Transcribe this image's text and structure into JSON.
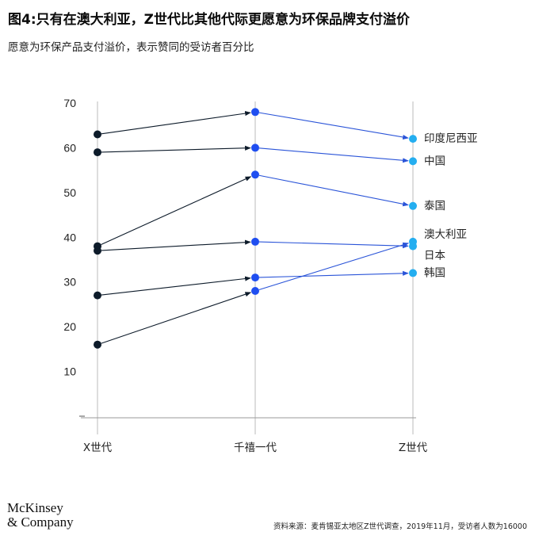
{
  "header": {
    "title": "图4:只有在澳大利亚，Z世代比其他代际更愿意为环保品牌支付溢价",
    "subtitle": "愿意为环保产品支付溢价，表示赞同的受访者百分比"
  },
  "footer": {
    "brand_line1": "McKinsey",
    "brand_line2": "& Company",
    "source": "资料来源：麦肯锡亚太地区Z世代调查，2019年11月，受访者人数为16000"
  },
  "colors": {
    "x_gen": "#0d1b2a",
    "millennial": "#1f4ef0",
    "z_gen": "#24aef0",
    "arrow_dark": "#0d1b2a",
    "arrow_blue": "#2a54d8",
    "grid": "#bbbbbb"
  },
  "chart_data": {
    "type": "line",
    "categories": [
      "X世代",
      "千禧一代",
      "Z世代"
    ],
    "ylim": [
      0,
      70
    ],
    "yticks": [
      10,
      20,
      30,
      40,
      50,
      60,
      70
    ],
    "series": [
      {
        "name": "印度尼西亚",
        "values": [
          63,
          68,
          62
        ]
      },
      {
        "name": "中国",
        "values": [
          59,
          60,
          57
        ]
      },
      {
        "name": "泰国",
        "values": [
          38,
          54,
          47
        ]
      },
      {
        "name": "澳大利亚",
        "values": [
          16,
          28,
          39
        ]
      },
      {
        "name": "日本",
        "values": [
          37,
          39,
          38
        ]
      },
      {
        "name": "韩国",
        "values": [
          27,
          31,
          32
        ]
      }
    ]
  }
}
